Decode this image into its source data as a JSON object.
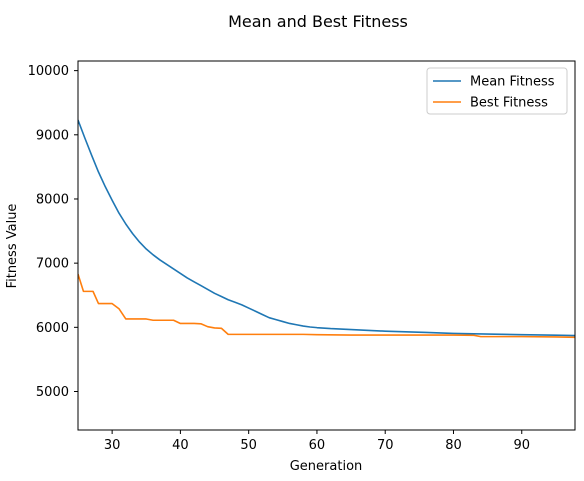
{
  "chart_data": {
    "type": "line",
    "title": "Mean and Best Fitness",
    "xlabel": "Generation",
    "ylabel": "Fitness Value",
    "xlim": [
      25,
      97.8
    ],
    "ylim": [
      4400,
      10150
    ],
    "xticks": [
      30,
      40,
      50,
      60,
      70,
      80,
      90
    ],
    "yticks": [
      5000,
      6000,
      7000,
      8000,
      9000,
      10000
    ],
    "grid": false,
    "legend_position": "top-right",
    "series": [
      {
        "name": "Mean Fitness",
        "color": "#1f77b4",
        "x": [
          25,
          26,
          27,
          28,
          29,
          30,
          31,
          32,
          33,
          34,
          35,
          36,
          37,
          38,
          39,
          40,
          41,
          42,
          43,
          44,
          45,
          46,
          47,
          48,
          49,
          50,
          51,
          52,
          53,
          54,
          55,
          56,
          57,
          58,
          59,
          60,
          62,
          65,
          68,
          70,
          73,
          76,
          80,
          85,
          90,
          95,
          97.8
        ],
        "y": [
          9230,
          8950,
          8680,
          8420,
          8190,
          7980,
          7780,
          7610,
          7460,
          7330,
          7220,
          7130,
          7050,
          6980,
          6910,
          6840,
          6770,
          6710,
          6650,
          6590,
          6530,
          6480,
          6430,
          6390,
          6350,
          6300,
          6250,
          6200,
          6150,
          6120,
          6090,
          6060,
          6040,
          6020,
          6005,
          5995,
          5980,
          5965,
          5950,
          5940,
          5930,
          5920,
          5905,
          5895,
          5885,
          5877,
          5872
        ]
      },
      {
        "name": "Best Fitness",
        "color": "#ff7f0e",
        "x": [
          25,
          25.8,
          26,
          27,
          27.2,
          28,
          29,
          30,
          31,
          32,
          33,
          34,
          35,
          36,
          37,
          38,
          39,
          40,
          41,
          42,
          43,
          44,
          45,
          46,
          47,
          50,
          55,
          58,
          60,
          65,
          70,
          80,
          83,
          84,
          90,
          95,
          97.8
        ],
        "y": [
          6830,
          6560,
          6560,
          6560,
          6560,
          6370,
          6370,
          6370,
          6290,
          6130,
          6130,
          6130,
          6130,
          6110,
          6110,
          6110,
          6110,
          6060,
          6060,
          6060,
          6055,
          6010,
          5990,
          5985,
          5890,
          5890,
          5890,
          5890,
          5885,
          5880,
          5880,
          5880,
          5875,
          5855,
          5855,
          5850,
          5845
        ]
      }
    ]
  }
}
